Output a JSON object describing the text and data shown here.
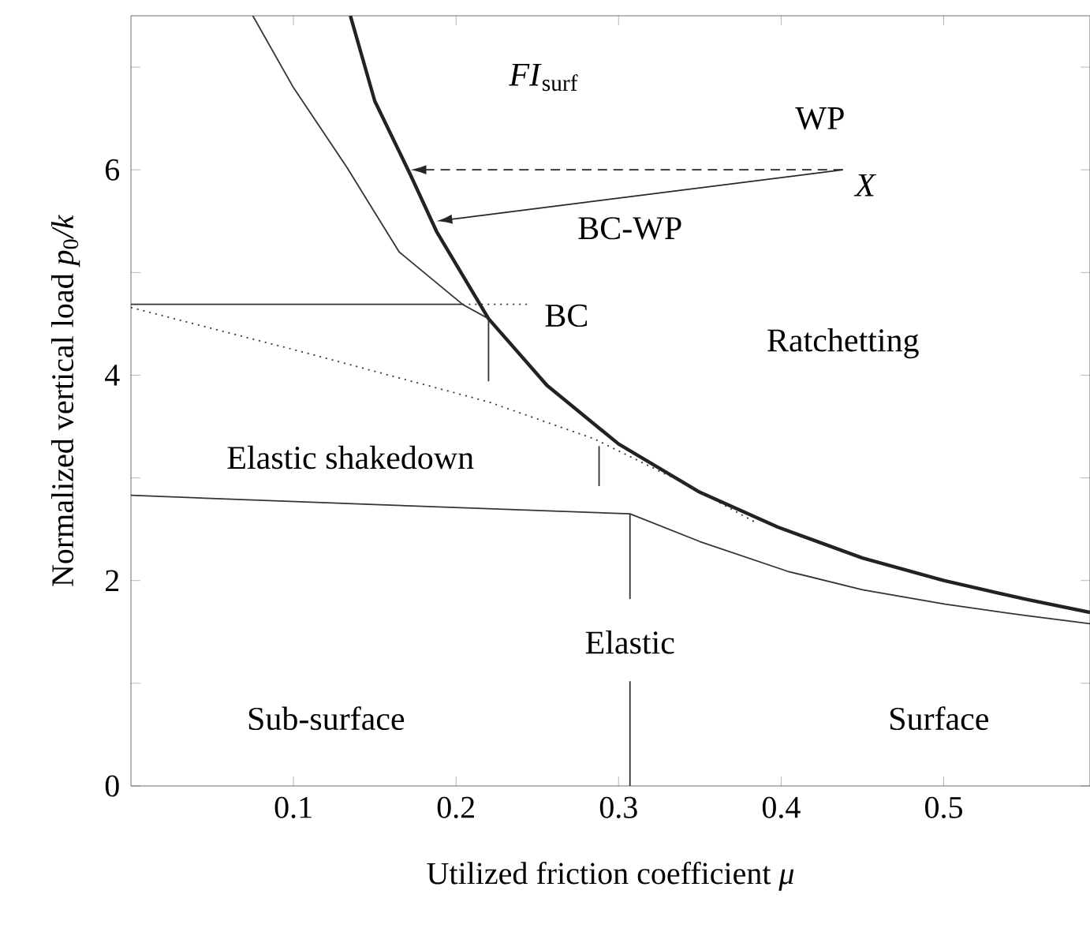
{
  "chart_data": {
    "type": "line",
    "xlabel": "Utilized friction coefficient *μ*",
    "ylabel": "Normalized vertical load  *p*$_{0}$*/k*",
    "xlim": [
      0,
      0.59
    ],
    "ylim": [
      0,
      7.5
    ],
    "xticks": [
      0.1,
      0.2,
      0.3,
      0.4,
      0.5
    ],
    "yticks": [
      0,
      {
        "value": 1,
        "label": null
      },
      2,
      {
        "value": 3,
        "label": null
      },
      4,
      {
        "value": 5,
        "label": null
      },
      6,
      {
        "value": 7,
        "label": null
      }
    ],
    "series": [
      {
        "color": "#222222",
        "line_style": "solid",
        "x": [
          0.135,
          0.15,
          0.172,
          0.188,
          0.22,
          0.256,
          0.3,
          0.35,
          0.398,
          0.45,
          0.5,
          0.55,
          0.59
        ],
        "values": [
          7.5,
          6.67,
          5.95,
          5.4,
          4.55,
          3.9,
          3.33,
          2.86,
          2.52,
          2.22,
          2.0,
          1.82,
          1.69
        ]
      },
      {
        "color": "#333333",
        "line_style": "solid",
        "x": [
          0.075,
          0.1,
          0.133,
          0.165,
          0.204,
          0.22
        ],
        "values": [
          7.5,
          6.8,
          6.02,
          5.2,
          4.69,
          4.55
        ]
      },
      {
        "color": "#333333",
        "line_style": "solid",
        "x": [
          0,
          0.15,
          0.307,
          0.35,
          0.404,
          0.45,
          0.501,
          0.55,
          0.59
        ],
        "values": [
          2.83,
          2.74,
          2.65,
          2.38,
          2.09,
          1.91,
          1.77,
          1.66,
          1.58
        ]
      },
      {
        "color": "#333333",
        "line_style": "solid",
        "x": [
          0,
          0.1,
          0.204
        ],
        "values": [
          4.69,
          4.69,
          4.69
        ]
      },
      {
        "color": "#333333",
        "line_style": "dotted",
        "x": [
          0.204,
          0.244
        ],
        "values": [
          4.69,
          4.69
        ]
      },
      {
        "color": "#333333",
        "line_style": "dotted",
        "x": [
          0,
          0.1,
          0.22,
          0.285,
          0.34,
          0.385
        ],
        "values": [
          4.66,
          4.25,
          3.74,
          3.38,
          2.95,
          2.56
        ]
      },
      {
        "color": "#333333",
        "line_style": "solid",
        "x": [
          0.307,
          0.307
        ],
        "values": [
          2.65,
          1.82
        ]
      },
      {
        "color": "#333333",
        "line_style": "solid",
        "x": [
          0.307,
          0.307
        ],
        "values": [
          1.02,
          0
        ]
      },
      {
        "color": "#333333",
        "line_style": "solid",
        "x": [
          0.22,
          0.22
        ],
        "values": [
          4.55,
          3.94
        ]
      },
      {
        "color": "#333333",
        "line_style": "solid",
        "x": [
          0.288,
          0.288
        ],
        "values": [
          3.31,
          2.92
        ]
      }
    ],
    "annotations": [
      "*FI*$_{surf}$",
      "WP",
      "*X*",
      "BC-WP",
      "BC",
      "Ratchetting",
      "Elastic shakedown",
      "Elastic",
      "Sub-surface",
      "Surface"
    ]
  }
}
